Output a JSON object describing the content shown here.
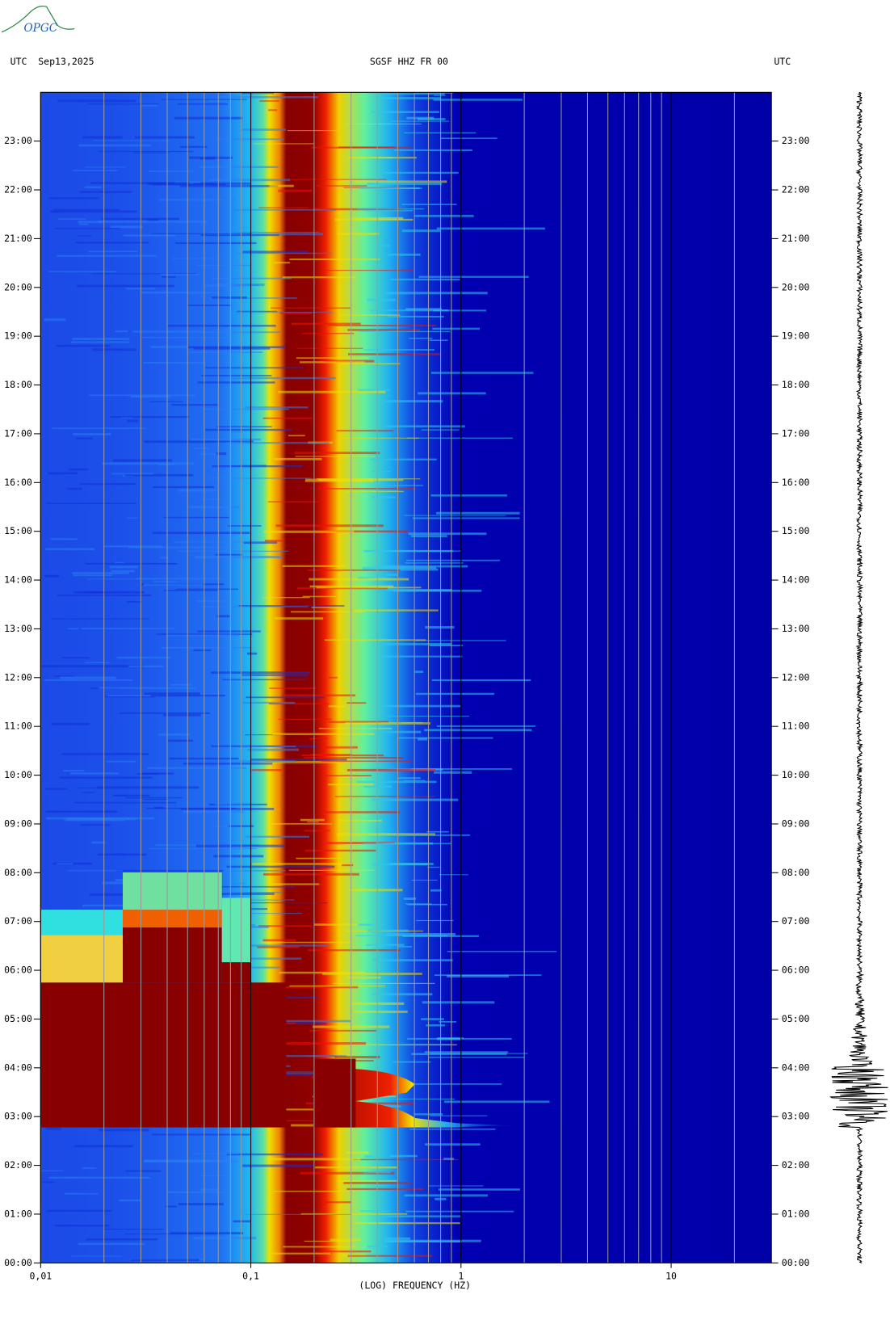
{
  "logo": "OPGC",
  "chart_data": {
    "type": "spectrogram",
    "header_left": "UTC  Sep13,2025",
    "title": "SGSF HHZ FR 00",
    "header_right": "UTC",
    "x_label": "(LOG) FREQUENCY (HZ)",
    "x_log": true,
    "xlim": [
      0.01,
      30
    ],
    "xticks": [
      {
        "value": 0.01,
        "label": "0,01"
      },
      {
        "value": 0.1,
        "label": "0,1"
      },
      1,
      10
    ],
    "xminorticks": [
      0.02,
      0.03,
      0.04,
      0.05,
      0.06,
      0.07,
      0.08,
      0.09,
      0.2,
      0.3,
      0.4,
      0.5,
      0.6,
      0.7,
      0.8,
      0.9,
      2,
      3,
      4,
      5,
      6,
      7,
      8,
      9,
      20
    ],
    "ylim": [
      0,
      24
    ],
    "yticks": [
      {
        "value": 0,
        "label": "00:00"
      },
      {
        "value": 1,
        "label": "01:00"
      },
      {
        "value": 2,
        "label": "02:00"
      },
      {
        "value": 3,
        "label": "03:00"
      },
      {
        "value": 4,
        "label": "04:00"
      },
      {
        "value": 5,
        "label": "05:00"
      },
      {
        "value": 6,
        "label": "06:00"
      },
      {
        "value": 7,
        "label": "07:00"
      },
      {
        "value": 8,
        "label": "08:00"
      },
      {
        "value": 9,
        "label": "09:00"
      },
      {
        "value": 10,
        "label": "10:00"
      },
      {
        "value": 11,
        "label": "11:00"
      },
      {
        "value": 12,
        "label": "12:00"
      },
      {
        "value": 13,
        "label": "13:00"
      },
      {
        "value": 14,
        "label": "14:00"
      },
      {
        "value": 15,
        "label": "15:00"
      },
      {
        "value": 16,
        "label": "16:00"
      },
      {
        "value": 17,
        "label": "17:00"
      },
      {
        "value": 18,
        "label": "18:00"
      },
      {
        "value": 19,
        "label": "19:00"
      },
      {
        "value": 20,
        "label": "20:00"
      },
      {
        "value": 21,
        "label": "21:00"
      },
      {
        "value": 22,
        "label": "22:00"
      },
      {
        "value": 23,
        "label": "23:00"
      }
    ],
    "grid": true
  }
}
